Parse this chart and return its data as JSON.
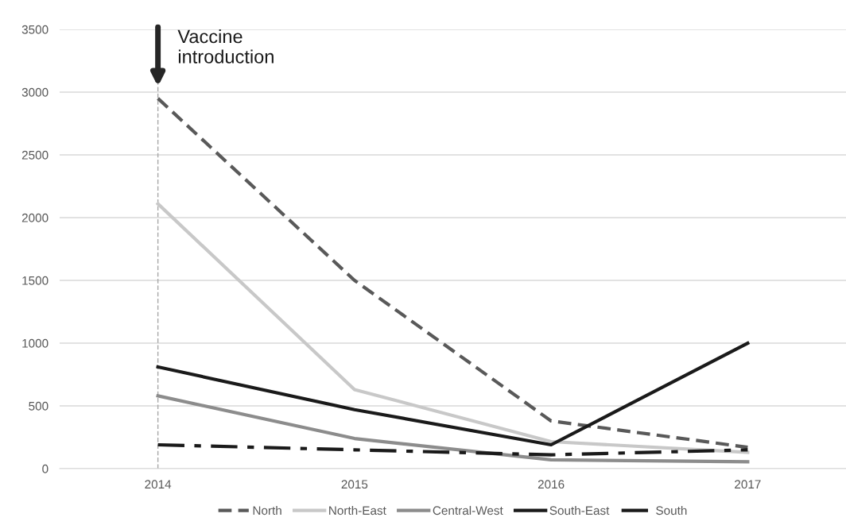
{
  "chart_data": {
    "type": "line",
    "categories": [
      "2014",
      "2015",
      "2016",
      "2017"
    ],
    "series": [
      {
        "name": "North",
        "color": "#595959",
        "line_style": "dashed",
        "values": [
          2950,
          1500,
          380,
          170
        ]
      },
      {
        "name": "North-East",
        "color": "#c8c8c8",
        "line_style": "solid",
        "values": [
          2110,
          630,
          215,
          130
        ]
      },
      {
        "name": "Central-West",
        "color": "#8c8c8c",
        "line_style": "solid",
        "values": [
          580,
          240,
          70,
          55
        ]
      },
      {
        "name": "South-East",
        "color": "#1a1a1a",
        "line_style": "solid",
        "values": [
          810,
          470,
          190,
          1000
        ]
      },
      {
        "name": "South",
        "color": "#1a1a1a",
        "line_style": "dashdot",
        "values": [
          190,
          150,
          110,
          150
        ]
      }
    ],
    "ylim": [
      0,
      3500
    ],
    "yticks": [
      0,
      500,
      1000,
      1500,
      2000,
      2500,
      3000,
      3500
    ],
    "grid": "y",
    "legend": "bottom",
    "marker": "none",
    "ref_lines": [
      {
        "axis": "x",
        "value": "2014",
        "color": "#a6a6a6",
        "line_style": "dashed"
      }
    ],
    "annotations": [
      {
        "text": "Vaccine\nintroduction",
        "x": "2014",
        "y": 3500
      }
    ]
  }
}
